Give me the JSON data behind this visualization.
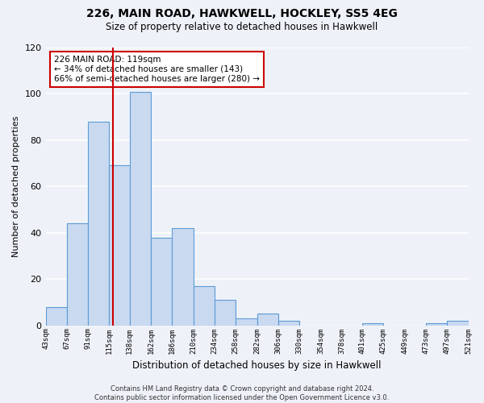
{
  "title": "226, MAIN ROAD, HAWKWELL, HOCKLEY, SS5 4EG",
  "subtitle": "Size of property relative to detached houses in Hawkwell",
  "xlabel": "Distribution of detached houses by size in Hawkwell",
  "ylabel": "Number of detached properties",
  "bar_edges": [
    43,
    67,
    91,
    115,
    138,
    162,
    186,
    210,
    234,
    258,
    282,
    306,
    330,
    354,
    378,
    401,
    425,
    449,
    473,
    497,
    521
  ],
  "bar_heights": [
    8,
    44,
    88,
    69,
    101,
    38,
    42,
    17,
    11,
    3,
    5,
    2,
    0,
    0,
    0,
    1,
    0,
    0,
    1,
    2
  ],
  "bar_color": "#c9d9f0",
  "bar_edge_color": "#5b9bd5",
  "vline_x": 119,
  "vline_color": "#cc0000",
  "annotation_line1": "226 MAIN ROAD: 119sqm",
  "annotation_line2": "← 34% of detached houses are smaller (143)",
  "annotation_line3": "66% of semi-detached houses are larger (280) →",
  "annotation_box_edge_color": "#cc0000",
  "annotation_box_face_color": "#ffffff",
  "ylim": [
    0,
    120
  ],
  "yticks": [
    0,
    20,
    40,
    60,
    80,
    100,
    120
  ],
  "tick_labels": [
    "43sqm",
    "67sqm",
    "91sqm",
    "115sqm",
    "138sqm",
    "162sqm",
    "186sqm",
    "210sqm",
    "234sqm",
    "258sqm",
    "282sqm",
    "306sqm",
    "330sqm",
    "354sqm",
    "378sqm",
    "401sqm",
    "425sqm",
    "449sqm",
    "473sqm",
    "497sqm",
    "521sqm"
  ],
  "footer_line1": "Contains HM Land Registry data © Crown copyright and database right 2024.",
  "footer_line2": "Contains public sector information licensed under the Open Government Licence v3.0.",
  "bg_color": "#eef2f8",
  "grid_color": "#ffffff"
}
